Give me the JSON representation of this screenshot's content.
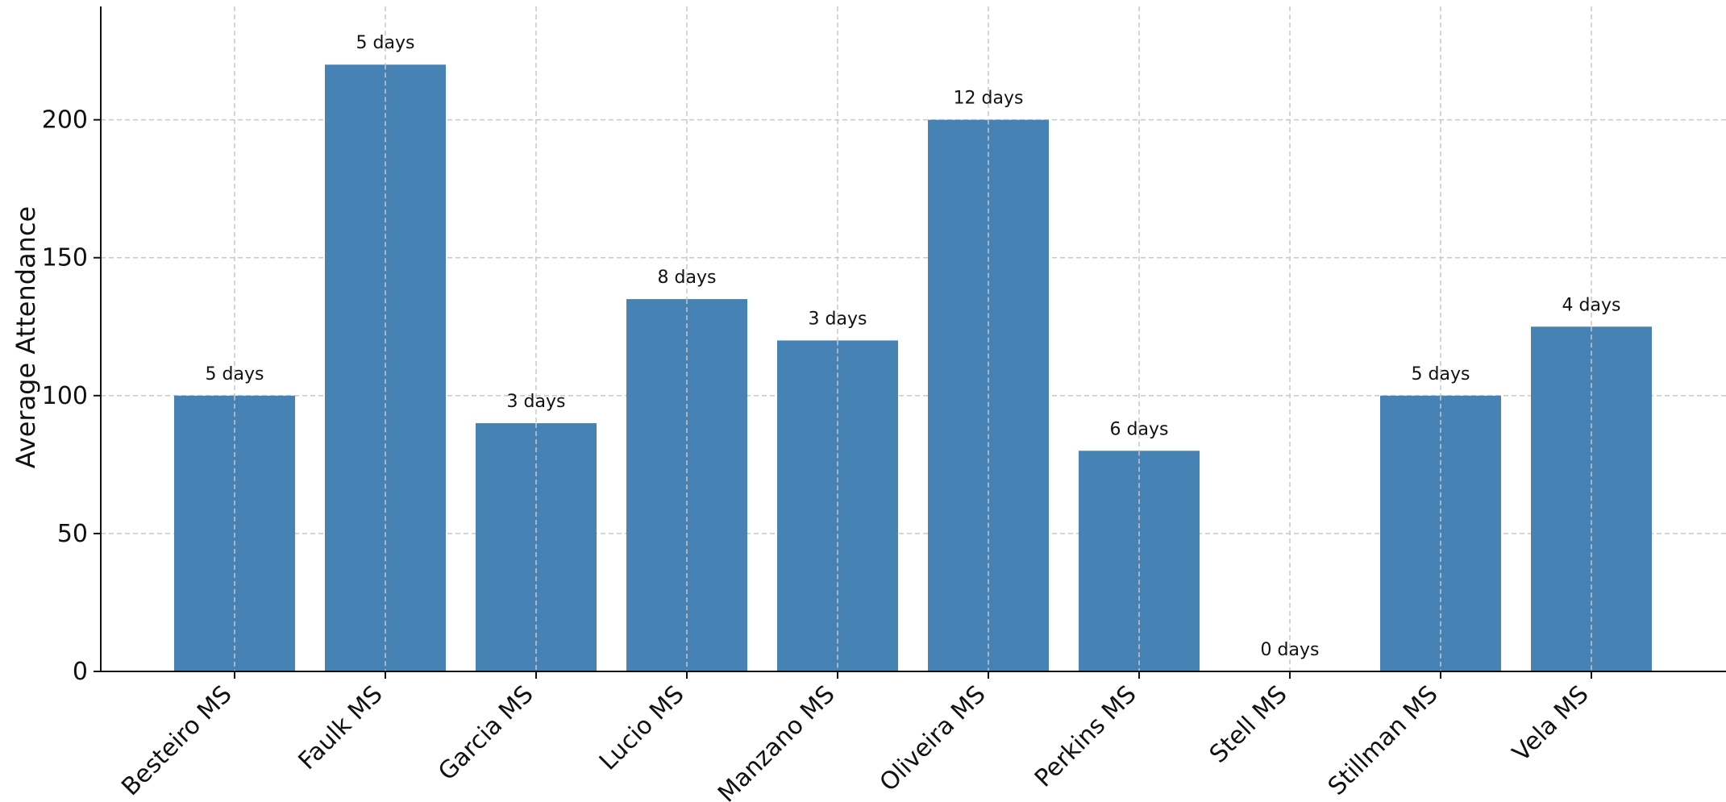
{
  "chart_data": {
    "type": "bar",
    "categories": [
      "Besteiro MS",
      "Faulk MS",
      "Garcia MS",
      "Lucio MS",
      "Manzano MS",
      "Oliveira MS",
      "Perkins MS",
      "Stell MS",
      "Stillman MS",
      "Vela MS"
    ],
    "values": [
      100,
      220,
      90,
      135,
      120,
      200,
      80,
      0,
      100,
      125
    ],
    "data_labels": [
      "5 days",
      "5 days",
      "3 days",
      "8 days",
      "3 days",
      "12 days",
      "6 days",
      "0 days",
      "5 days",
      "4 days"
    ],
    "title": "",
    "xlabel": "",
    "ylabel": "Average Attendance",
    "ylim": [
      0,
      230
    ],
    "yticks": [
      0,
      50,
      100,
      150,
      200
    ],
    "grid": true,
    "bar_color": "#4682b4",
    "grid_color": "#c8c8c8"
  }
}
